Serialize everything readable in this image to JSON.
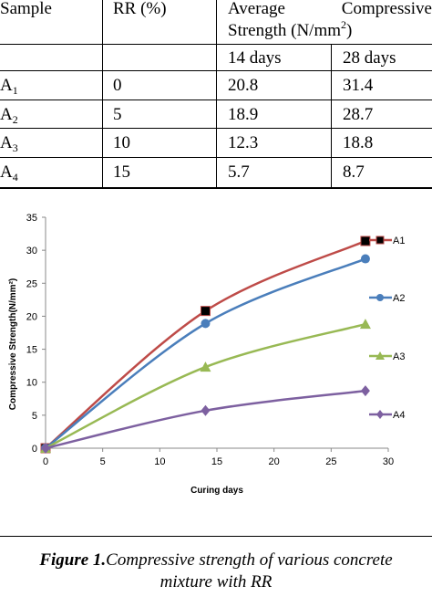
{
  "table": {
    "headers": {
      "sample": "Sample",
      "rr": "RR (%)",
      "acs_line1": "Average Compressive",
      "acs_line2_pre": "Strength (N/mm",
      "acs_line2_sup": "2",
      "acs_line2_post": ")",
      "day14": "14 days",
      "day28": "28 days"
    },
    "rows": [
      {
        "sample_base": "A",
        "sample_sub": "1",
        "rr": "0",
        "d14": "20.8",
        "d28": "31.4"
      },
      {
        "sample_base": "A",
        "sample_sub": "2",
        "rr": "5",
        "d14": "18.9",
        "d28": "28.7"
      },
      {
        "sample_base": "A",
        "sample_sub": "3",
        "rr": "10",
        "d14": "12.3",
        "d28": "18.8"
      },
      {
        "sample_base": "A",
        "sample_sub": "4",
        "rr": "15",
        "d14": "5.7",
        "d28": "8.7"
      }
    ]
  },
  "chart_data": {
    "type": "line",
    "xlabel": "Curing days",
    "ylabel": "Compressive  Strength(N/mm²)",
    "xlim": [
      0,
      30
    ],
    "ylim": [
      0,
      35
    ],
    "xticks": [
      0,
      5,
      10,
      15,
      20,
      25,
      30
    ],
    "yticks": [
      0,
      5,
      10,
      15,
      20,
      25,
      30,
      35
    ],
    "x": [
      0,
      14,
      28
    ],
    "legend_position": "right",
    "series": [
      {
        "name": "A1",
        "values": [
          0,
          20.8,
          31.4
        ],
        "color": "#be4b48",
        "marker": "square",
        "marker_color": "#000000"
      },
      {
        "name": "A2",
        "values": [
          0,
          18.9,
          28.7
        ],
        "color": "#4a7ebb",
        "marker": "circle",
        "marker_color": "#4a7ebb"
      },
      {
        "name": "A3",
        "values": [
          0,
          12.3,
          18.8
        ],
        "color": "#98b954",
        "marker": "triangle",
        "marker_color": "#98b954"
      },
      {
        "name": "A4",
        "values": [
          0,
          5.7,
          8.7
        ],
        "color": "#7d60a0",
        "marker": "diamond",
        "marker_color": "#7d60a0"
      }
    ]
  },
  "caption": {
    "label": "Figure 1.",
    "text_line1": "Compressive strength of various concrete",
    "text_line2": "mixture with RR"
  }
}
